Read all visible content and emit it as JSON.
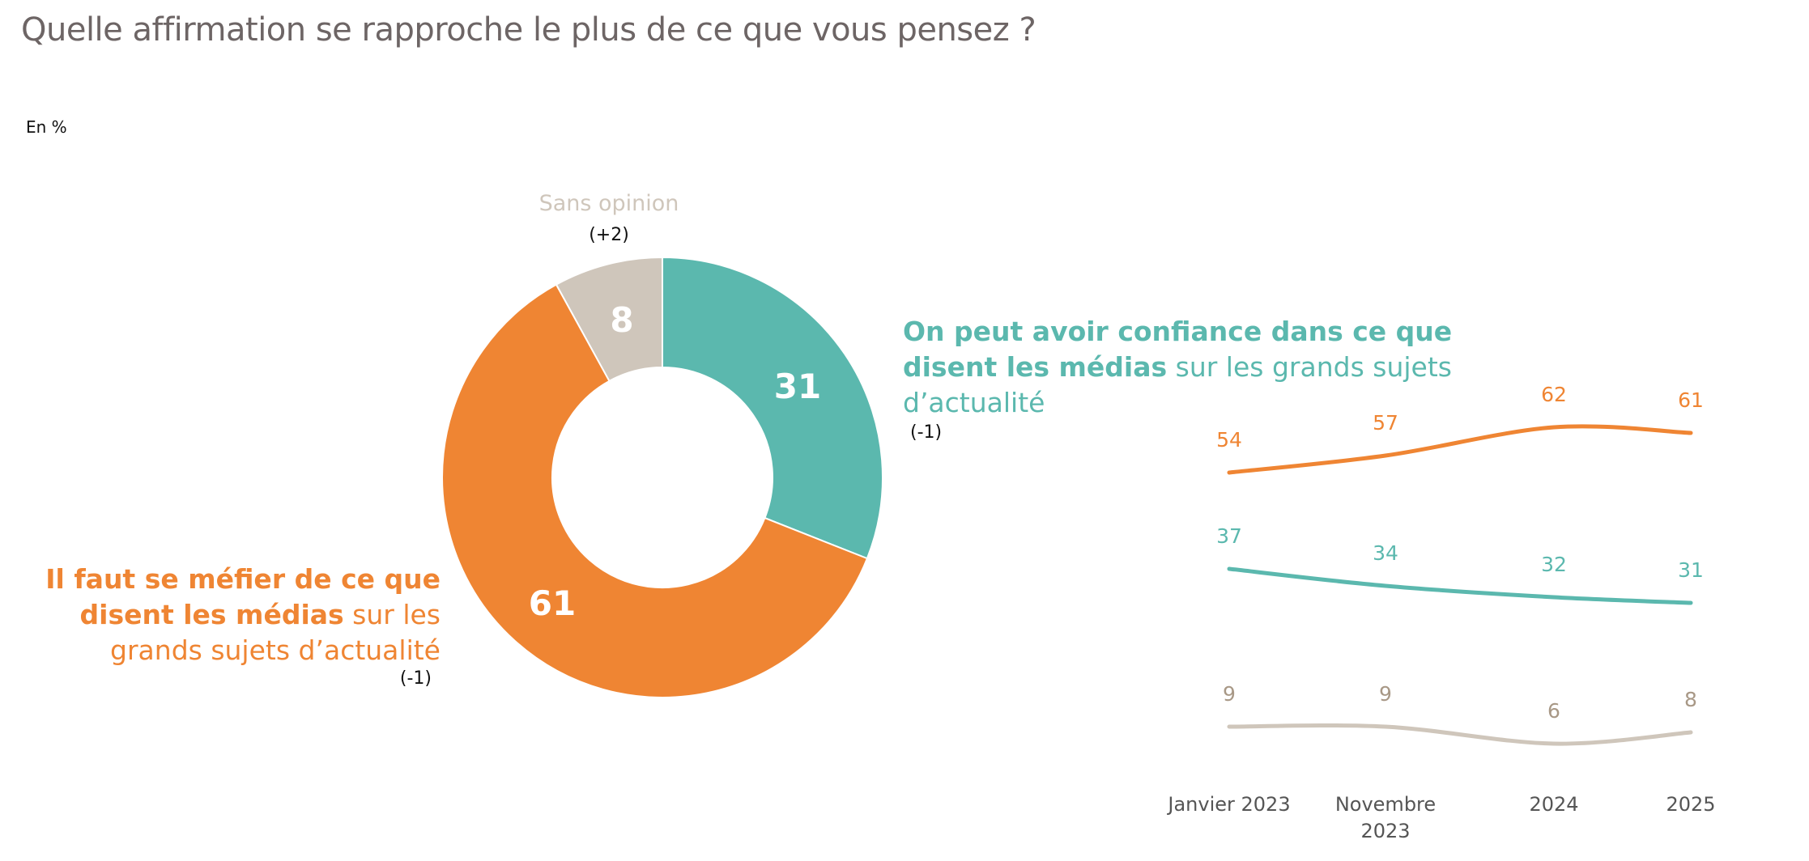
{
  "title": "Quelle affirmation se rapproche le plus de ce que vous pensez ?",
  "unit": "En %",
  "colors": {
    "teal": "#5bb8ae",
    "orange": "#ef8533",
    "grey": "#cfc6bb",
    "grey_label": "#a89886"
  },
  "labels": {
    "confiance_bold": "On peut avoir confiance dans ce que disent les médias",
    "confiance_rest": " sur les grands sujets d’actualité",
    "confiance_delta": "(-1)",
    "mefier_bold": "Il faut se méfier de ce que disent les médias",
    "mefier_rest": " sur les grands sujets d’actualité",
    "mefier_delta": "(-1)",
    "sans_opinion": "Sans opinion",
    "sans_opinion_delta": "(+2)"
  },
  "chart_data": [
    {
      "type": "pie",
      "donut": true,
      "slices": [
        {
          "name": "On peut avoir confiance",
          "value": 31,
          "label": "31",
          "color": "#5bb8ae"
        },
        {
          "name": "Il faut se méfier",
          "value": 61,
          "label": "61",
          "color": "#ef8533"
        },
        {
          "name": "Sans opinion",
          "value": 8,
          "label": "8",
          "color": "#cfc6bb"
        }
      ]
    },
    {
      "type": "line",
      "categories": [
        [
          "Janvier 2023"
        ],
        [
          "Novembre",
          "2023"
        ],
        [
          "2024"
        ],
        [
          "2025"
        ]
      ],
      "series": [
        {
          "name": "Il faut se méfier",
          "color": "#ef8533",
          "values": [
            54,
            57,
            62,
            61
          ],
          "labels": [
            "54",
            "57",
            "62",
            "61"
          ]
        },
        {
          "name": "On peut avoir confiance",
          "color": "#5bb8ae",
          "values": [
            37,
            34,
            32,
            31
          ],
          "labels": [
            "37",
            "34",
            "32",
            "31"
          ]
        },
        {
          "name": "Sans opinion",
          "color": "#cfc6bb",
          "label_color": "#a89886",
          "values": [
            9,
            9,
            6,
            8
          ],
          "labels": [
            "9",
            "9",
            "6",
            "8"
          ]
        }
      ]
    }
  ]
}
